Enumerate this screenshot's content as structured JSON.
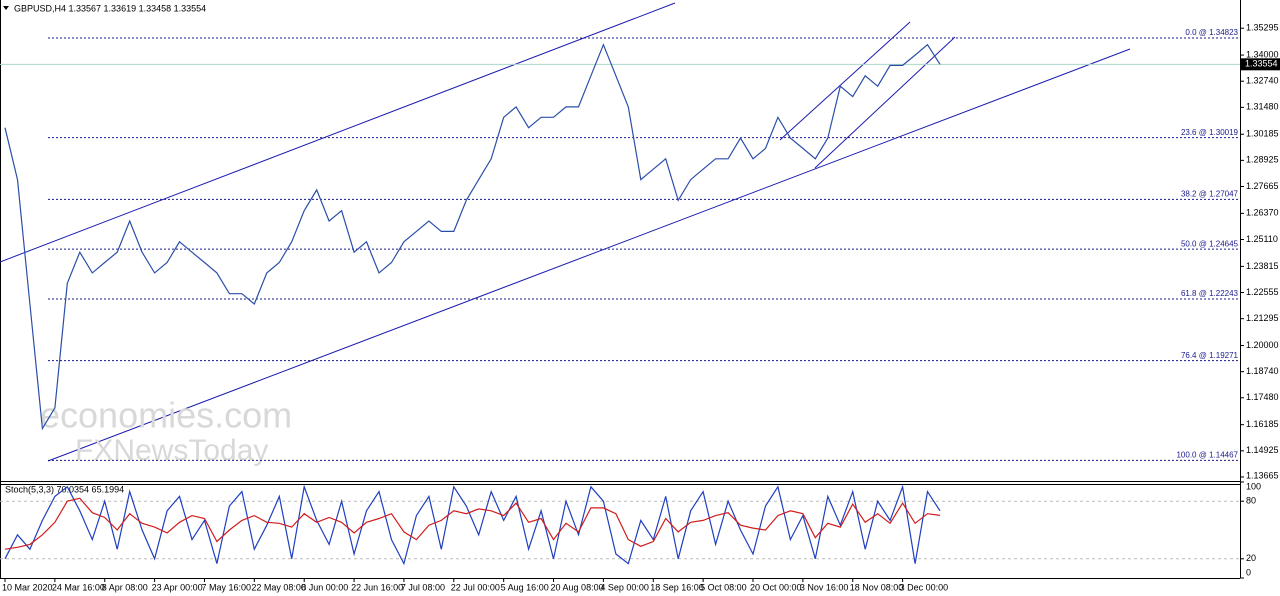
{
  "header": {
    "title": "GBPUSD,H4  1.33567 1.33619 1.33458 1.33554"
  },
  "chart_data": [
    {
      "type": "line",
      "categories": [
        "10 Mar 2020",
        null,
        null,
        null,
        "24 Mar 16:00",
        null,
        null,
        null,
        "8 Apr 08:00",
        null,
        null,
        null,
        "23 Apr 00:00",
        null,
        null,
        null,
        "7 May 16:00",
        null,
        null,
        null,
        "22 May 08:00",
        null,
        null,
        null,
        "8 Jun 00:00",
        null,
        null,
        null,
        "22 Jun 16:00",
        null,
        null,
        null,
        "7 Jul 08:00",
        null,
        null,
        null,
        "22 Jul 00:00",
        null,
        null,
        null,
        "5 Aug 16:00",
        null,
        null,
        null,
        "20 Aug 08:00",
        null,
        null,
        null,
        "4 Sep 00:00",
        null,
        null,
        null,
        "18 Sep 16:00",
        null,
        null,
        null,
        "5 Oct 08:00",
        null,
        null,
        null,
        "20 Oct 00:00",
        null,
        null,
        null,
        "3 Nov 16:00",
        null,
        null,
        null,
        "18 Nov 08:00",
        null,
        null,
        null,
        "3 Dec 00:00",
        null,
        null,
        null
      ],
      "series": [
        {
          "name": "GBPUSD,H4",
          "color": "#2b4fa8",
          "values": [
            1.305,
            1.28,
            1.22,
            1.16,
            1.17,
            1.23,
            1.245,
            1.235,
            1.24,
            1.245,
            1.26,
            1.245,
            1.235,
            1.24,
            1.25,
            1.245,
            1.24,
            1.235,
            1.225,
            1.225,
            1.22,
            1.235,
            1.24,
            1.25,
            1.265,
            1.275,
            1.26,
            1.265,
            1.245,
            1.25,
            1.235,
            1.24,
            1.25,
            1.255,
            1.26,
            1.255,
            1.255,
            1.27,
            1.28,
            1.29,
            1.31,
            1.315,
            1.305,
            1.31,
            1.31,
            1.315,
            1.315,
            1.33,
            1.345,
            1.33,
            1.315,
            1.28,
            1.285,
            1.29,
            1.27,
            1.28,
            1.285,
            1.29,
            1.29,
            1.3,
            1.29,
            1.295,
            1.31,
            1.3,
            1.295,
            1.29,
            1.3,
            1.325,
            1.32,
            1.33,
            1.325,
            1.335,
            1.335,
            1.34,
            1.345,
            1.33554
          ]
        }
      ],
      "current_price": 1.33554,
      "ylim": [
        1.1347,
        1.3651
      ],
      "yticks": [
        1.35295,
        {
          "value": 1.34,
          "label": "1.34000"
        },
        {
          "value": 1.3274,
          "label": "1.32740"
        },
        {
          "value": 1.3148,
          "label": "1.31480"
        },
        1.30185,
        1.28925,
        1.27665,
        {
          "value": 1.2637,
          "label": "1.26370"
        },
        {
          "value": 1.2511,
          "label": "1.25110"
        },
        1.23815,
        1.22555,
        1.21295,
        {
          "value": 1.2,
          "label": "1.20000"
        },
        {
          "value": 1.1874,
          "label": "1.18740"
        },
        {
          "value": 1.1748,
          "label": "1.17480"
        },
        1.16185,
        1.14925,
        1.13665
      ],
      "fib_levels": [
        {
          "value": 1.34823,
          "label": "0.0 @ 1.34823"
        },
        {
          "value": 1.30019,
          "label": "23.6 @ 1.30019"
        },
        {
          "value": 1.27047,
          "label": "38.2 @ 1.27047"
        },
        {
          "value": 1.24645,
          "label": "50.0 @ 1.24645"
        },
        {
          "value": 1.22243,
          "label": "61.8 @ 1.22243"
        },
        {
          "value": 1.19271,
          "label": "76.4 @ 1.19271"
        },
        {
          "value": 1.14467,
          "label": "100.0 @ 1.14467"
        }
      ],
      "fib_color": "#1a1a8c",
      "annotations": [
        "economies.com",
        "FXNewsToday"
      ]
    },
    {
      "type": "line",
      "title": "Stoch(5,3,3) 70.0354 65.1994",
      "series": [
        {
          "name": "Main",
          "color": "#1f3fbf",
          "values": [
            20,
            45,
            30,
            60,
            85,
            95,
            70,
            40,
            80,
            30,
            90,
            50,
            20,
            70,
            85,
            40,
            60,
            15,
            75,
            90,
            30,
            55,
            85,
            20,
            95,
            60,
            35,
            80,
            25,
            70,
            90,
            40,
            15,
            65,
            85,
            30,
            95,
            75,
            45,
            90,
            60,
            85,
            30,
            70,
            20,
            80,
            45,
            95,
            80,
            25,
            15,
            60,
            40,
            85,
            20,
            70,
            90,
            35,
            80,
            50,
            25,
            75,
            95,
            40,
            65,
            20,
            85,
            55,
            90,
            30,
            80,
            60,
            95,
            15,
            90,
            70.0354
          ]
        },
        {
          "name": "Signal",
          "color": "#d01c1c",
          "values": [
            30,
            32,
            35,
            45,
            58,
            80,
            83,
            68,
            63,
            50,
            67,
            57,
            53,
            47,
            58,
            65,
            62,
            38,
            50,
            60,
            65,
            58,
            57,
            53,
            67,
            58,
            63,
            58,
            47,
            58,
            62,
            67,
            48,
            40,
            55,
            60,
            70,
            67,
            72,
            70,
            65,
            78,
            58,
            62,
            40,
            57,
            48,
            73,
            73,
            67,
            40,
            33,
            38,
            62,
            48,
            58,
            60,
            65,
            68,
            55,
            52,
            50,
            65,
            70,
            67,
            42,
            57,
            53,
            77,
            58,
            67,
            57,
            78,
            57,
            67,
            65.1994
          ]
        }
      ],
      "ylim": [
        0,
        100
      ],
      "yticks": [
        0,
        20,
        80,
        100
      ],
      "levels": [
        20,
        80
      ]
    }
  ]
}
